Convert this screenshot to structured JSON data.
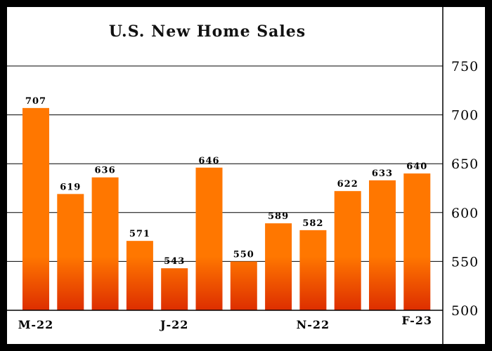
{
  "chart_data": {
    "type": "bar",
    "title": "U.S. New Home Sales",
    "categories": [
      "M-22",
      "",
      "",
      "",
      "J-22",
      "",
      "",
      "",
      "N-22",
      "",
      "",
      "F-23"
    ],
    "values": [
      707,
      619,
      636,
      571,
      543,
      646,
      550,
      589,
      582,
      622,
      633,
      640
    ],
    "data_labels": [
      "707",
      "619",
      "636",
      "571",
      "543",
      "646",
      "550",
      "589",
      "582",
      "622",
      "633",
      "640"
    ],
    "xlabel": "",
    "ylabel": "",
    "ylim": [
      500,
      800
    ],
    "yticks": [
      "500",
      "550",
      "600",
      "650",
      "700",
      "750"
    ],
    "y_axis_side": "right",
    "grid": true,
    "colors": {
      "bar_top": "#ff7700",
      "bar_bottom": "#cc0000",
      "grid": "#000000",
      "background": "#ffffff",
      "frame": "#000000"
    }
  }
}
